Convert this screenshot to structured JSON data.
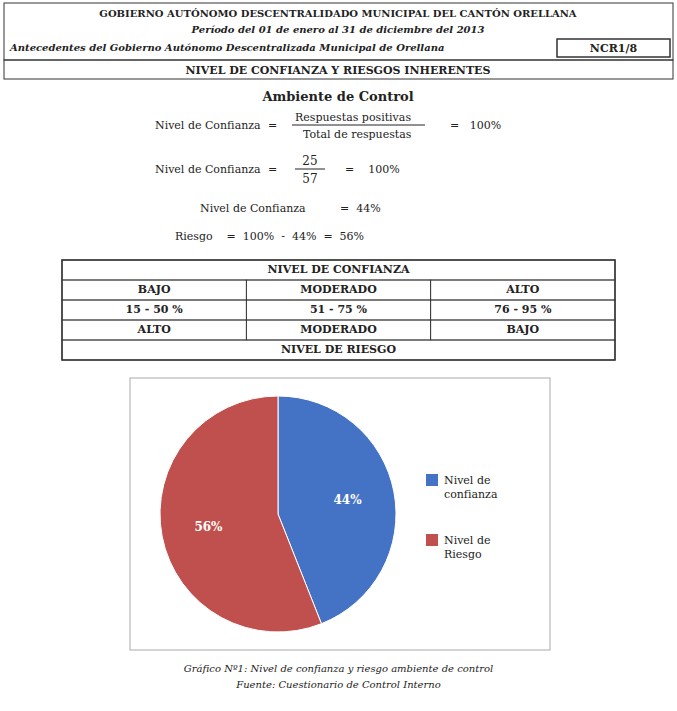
{
  "chart_data": {
    "type": "pie",
    "title": "Gráfico Nº1: Nivel de confianza y riesgo ambiente de control",
    "subtitle": "Fuente: Cuestionario de Control Interno",
    "categories": [
      "Nivel de\nconfianza",
      "Nivel de\nRiesgo"
    ],
    "values": [
      44,
      56
    ],
    "value_labels": [
      "44%",
      "56%"
    ],
    "colors": [
      "#4472c4",
      "#c0504d"
    ],
    "data_labels": true,
    "legend": "right",
    "annotations": [
      "GOBIERNO AUTÓNOMO DESCENTRALIDADO MUNICIPAL DEL CANTÓN ORELLANA",
      "Período del 01 de enero al 31 de diciembre del 2013",
      "Antecedentes del Gobierno Autónomo Descentralizada Municipal de Orellana",
      "NCR1/8",
      "NIVEL DE CONFIANZA Y RIESGOS INHERENTES",
      "Ambiente de Control",
      "Nivel de Confianza",
      "=",
      "Respuestas positivas",
      "Total de respuestas",
      "=   100%",
      "Nivel de Confianza",
      "=",
      "25",
      "57",
      "=    100%",
      "Nivel de Confianza",
      "=  44%",
      "Riesgo    =  100%  -  44%  =  56%",
      "NIVEL DE CONFIANZA",
      "BAJO",
      "MODERADO",
      "ALTO",
      "15 - 50 %",
      "51 - 75 %",
      "76 - 95 %",
      "ALTO",
      "MODERADO",
      "BAJO",
      "NIVEL DE RIESGO"
    ]
  }
}
